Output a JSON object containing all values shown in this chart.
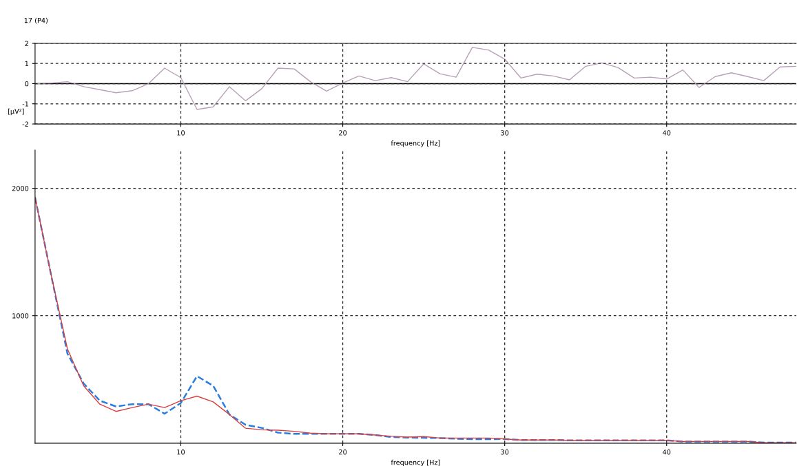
{
  "chart_data": [
    {
      "type": "line",
      "title": "17 (P4)",
      "xlabel": "frequency [Hz]",
      "ylabel": "[µV²]",
      "x": [
        1,
        2,
        3,
        4,
        5,
        6,
        7,
        8,
        9,
        10,
        11,
        12,
        13,
        14,
        15,
        16,
        17,
        18,
        19,
        20,
        21,
        22,
        23,
        24,
        25,
        26,
        27,
        28,
        29,
        30,
        31,
        32,
        33,
        34,
        35,
        36,
        37,
        38,
        39,
        40,
        41,
        42,
        43,
        44,
        45,
        46,
        47,
        48
      ],
      "series": [
        {
          "color": "#b8a0b8",
          "values": [
            0,
            0.03,
            0.1,
            -0.15,
            -0.3,
            -0.45,
            -0.35,
            0,
            0.77,
            0.3,
            -1.28,
            -1.15,
            -0.15,
            -0.85,
            -0.25,
            0.77,
            0.73,
            0.1,
            -0.37,
            0.03,
            0.38,
            0.15,
            0.3,
            0.1,
            0.98,
            0.49,
            0.32,
            1.8,
            1.67,
            1.22,
            0.28,
            0.47,
            0.38,
            0.19,
            0.86,
            1.03,
            0.8,
            0.28,
            0.32,
            0.23,
            0.68,
            -0.19,
            0.35,
            0.54,
            0.35,
            0.15,
            0.83,
            0.86
          ]
        }
      ],
      "xlim": [
        1,
        48
      ],
      "xticks": [
        10,
        20,
        30,
        40
      ],
      "ylim": [
        -2,
        2
      ],
      "yticks": [
        -2,
        -1,
        0,
        1,
        2
      ],
      "ref_lines": [
        {
          "axis": "y",
          "value": 0,
          "color": "#000000",
          "line_style": "solid"
        }
      ],
      "grid": true,
      "line_style": "solid",
      "marker": "none",
      "legend": false
    },
    {
      "type": "line",
      "xlabel": "frequency [Hz]",
      "x": [
        1,
        2,
        3,
        4,
        5,
        6,
        7,
        8,
        9,
        10,
        11,
        12,
        13,
        14,
        15,
        16,
        17,
        18,
        19,
        20,
        21,
        22,
        23,
        24,
        25,
        26,
        27,
        28,
        29,
        30,
        31,
        32,
        33,
        34,
        35,
        36,
        37,
        38,
        39,
        40,
        41,
        42,
        43,
        44,
        45,
        46,
        47,
        48
      ],
      "series": [
        {
          "color": "#d84040",
          "line_style": "solid",
          "values": [
            1928,
            1315,
            739,
            450,
            306,
            249,
            279,
            306,
            279,
            333,
            369,
            324,
            225,
            117,
            105,
            102,
            93,
            79,
            73,
            73,
            73,
            64,
            54,
            48,
            52,
            40,
            40,
            40,
            40,
            33,
            25,
            25,
            25,
            22,
            22,
            22,
            22,
            22,
            22,
            22,
            13,
            13,
            13,
            13,
            13,
            4,
            4,
            4
          ]
        },
        {
          "color": "#2a7de0",
          "line_style": "dashed",
          "values": [
            1928,
            1315,
            703,
            468,
            333,
            288,
            306,
            306,
            231,
            315,
            526,
            450,
            225,
            144,
            120,
            83,
            73,
            73,
            73,
            73,
            73,
            64,
            48,
            44,
            42,
            40,
            35,
            31,
            31,
            33,
            25,
            25,
            25,
            22,
            22,
            22,
            22,
            22,
            22,
            22,
            13,
            13,
            13,
            13,
            13,
            4,
            4,
            4
          ]
        }
      ],
      "xlim": [
        1,
        48
      ],
      "xticks": [
        10,
        20,
        30,
        40
      ],
      "ylim": [
        0,
        2300
      ],
      "yticks": [
        1000,
        2000
      ],
      "grid": true,
      "marker": "none",
      "legend": false
    }
  ]
}
